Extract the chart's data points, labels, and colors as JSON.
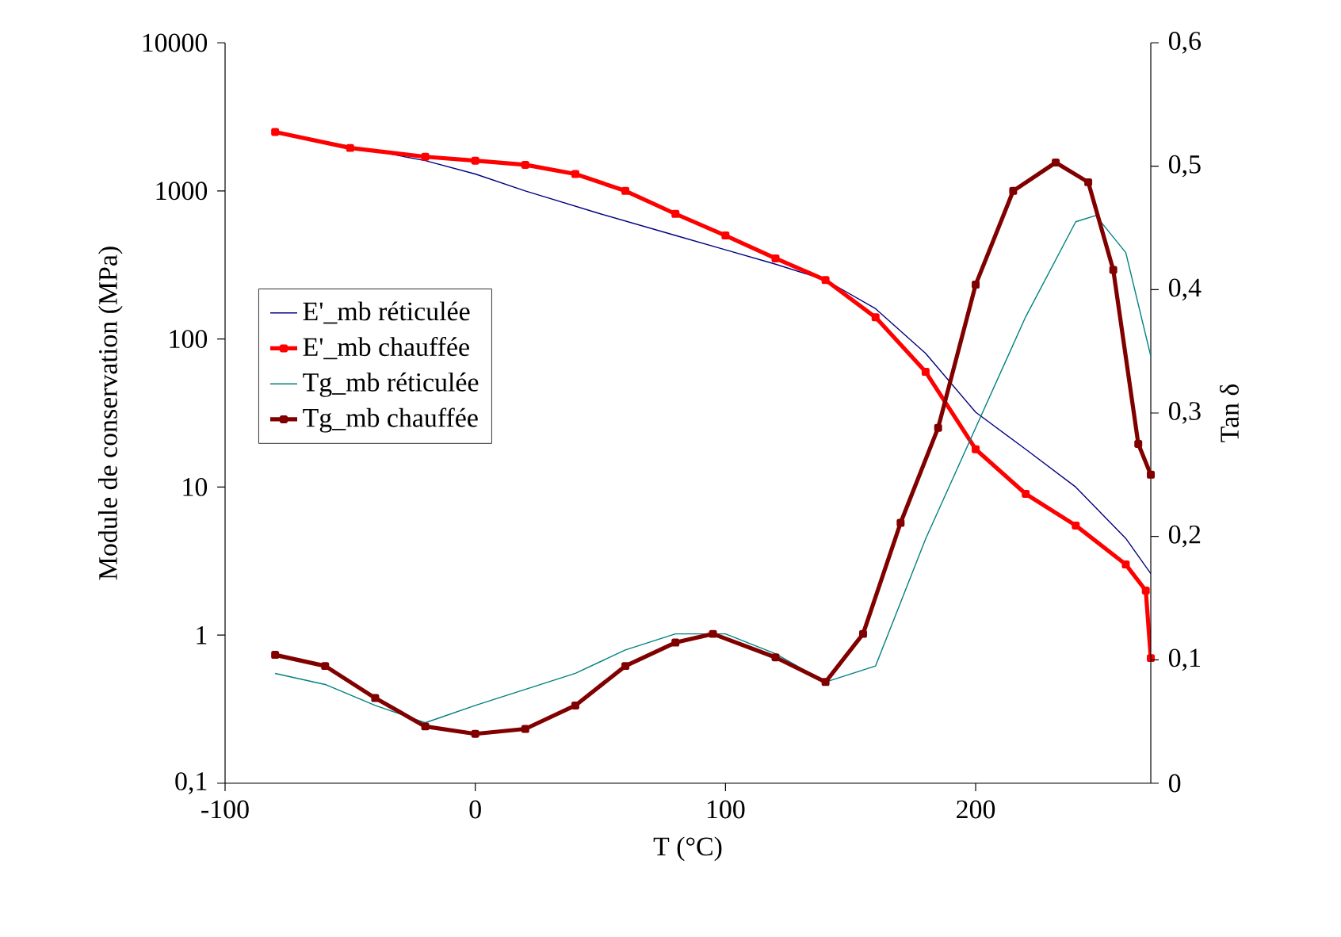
{
  "chart_data": {
    "type": "line",
    "xlabel": "T (°C)",
    "ylabel": "Module de conservation (MPa)",
    "y2label": "Tan δ",
    "xlim": [
      -100,
      270
    ],
    "xticks": [
      -100,
      0,
      100,
      200
    ],
    "ylim": [
      0.1,
      10000
    ],
    "yticks": [
      {
        "value": 0.1,
        "label": "0,1"
      },
      1,
      10,
      100,
      1000,
      10000
    ],
    "y2lim": [
      0,
      0.6
    ],
    "y2ticks": [
      0,
      {
        "value": 0.1,
        "label": "0,1"
      },
      {
        "value": 0.2,
        "label": "0,2"
      },
      {
        "value": 0.3,
        "label": "0,3"
      },
      {
        "value": 0.4,
        "label": "0,4"
      },
      {
        "value": 0.5,
        "label": "0,5"
      },
      {
        "value": 0.6,
        "label": "0,6"
      }
    ],
    "log": "y",
    "legend": "left",
    "grid": false,
    "series": [
      {
        "name": "E'_mb réticulée",
        "color": "#000080",
        "x": [
          -80,
          -50,
          -20,
          0,
          20,
          50,
          80,
          100,
          120,
          140,
          160,
          180,
          200,
          220,
          240,
          260,
          270
        ],
        "values": [
          2500,
          2000,
          1600,
          1300,
          1000,
          700,
          500,
          400,
          320,
          250,
          160,
          80,
          32,
          18,
          10,
          4.5,
          2.6
        ]
      },
      {
        "name": "E'_mb chauffée",
        "color": "#ff0000",
        "marker": "square",
        "x": [
          -80,
          -50,
          -20,
          0,
          20,
          40,
          60,
          80,
          100,
          120,
          140,
          160,
          180,
          200,
          220,
          240,
          260,
          268,
          270
        ],
        "values": [
          2500,
          1950,
          1700,
          1600,
          1500,
          1300,
          1000,
          700,
          500,
          350,
          250,
          140,
          60,
          18,
          9,
          5.5,
          3,
          2,
          0.7
        ]
      },
      {
        "name": "Tg_mb réticulée",
        "color": "#008080",
        "axis": "y2",
        "x": [
          -80,
          -60,
          -40,
          -20,
          0,
          20,
          40,
          60,
          80,
          100,
          120,
          140,
          160,
          180,
          200,
          220,
          240,
          248,
          260,
          270
        ],
        "values": [
          0.089,
          0.08,
          0.063,
          0.049,
          0.063,
          0.076,
          0.089,
          0.108,
          0.121,
          0.121,
          0.105,
          0.082,
          0.095,
          0.198,
          0.288,
          0.378,
          0.455,
          0.46,
          0.43,
          0.346
        ]
      },
      {
        "name": "Tg_mb chauffée",
        "color": "#800000",
        "marker": "square",
        "axis": "y2",
        "x": [
          -80,
          -60,
          -40,
          -20,
          0,
          20,
          40,
          60,
          80,
          95,
          120,
          140,
          155,
          170,
          185,
          200,
          215,
          232,
          245,
          255,
          265,
          270
        ],
        "values": [
          0.104,
          0.095,
          0.069,
          0.046,
          0.04,
          0.044,
          0.063,
          0.095,
          0.114,
          0.121,
          0.102,
          0.082,
          0.121,
          0.211,
          0.288,
          0.404,
          0.48,
          0.503,
          0.487,
          0.416,
          0.275,
          0.25
        ]
      }
    ]
  }
}
